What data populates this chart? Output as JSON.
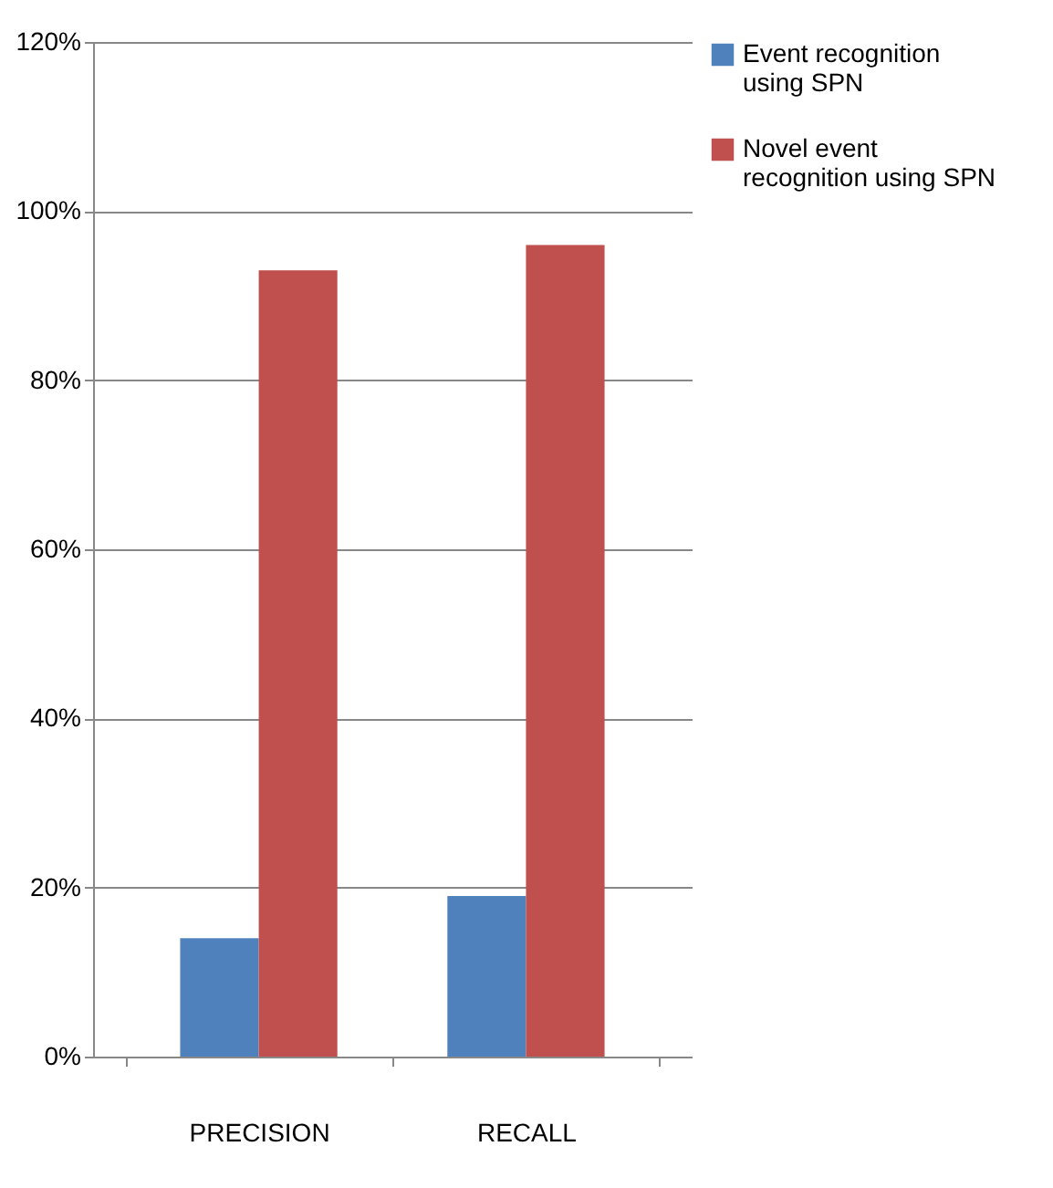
{
  "chart_data": {
    "type": "bar",
    "categories": [
      "PRECISION",
      "RECALL"
    ],
    "series": [
      {
        "name": "Event recognition using SPN",
        "color": "#4f81bd",
        "values": [
          14,
          19
        ]
      },
      {
        "name": "Novel event recognition using SPN",
        "color": "#c0504d",
        "values": [
          93,
          96
        ]
      }
    ],
    "ylim": [
      0,
      120
    ],
    "yticks": [
      {
        "value": 0,
        "label": "0%"
      },
      {
        "value": 20,
        "label": "20%"
      },
      {
        "value": 40,
        "label": "40%"
      },
      {
        "value": 60,
        "label": "60%"
      },
      {
        "value": 80,
        "label": "80%"
      },
      {
        "value": 100,
        "label": "100%"
      },
      {
        "value": 120,
        "label": "120%"
      }
    ],
    "grid": "y",
    "legend": "right"
  }
}
